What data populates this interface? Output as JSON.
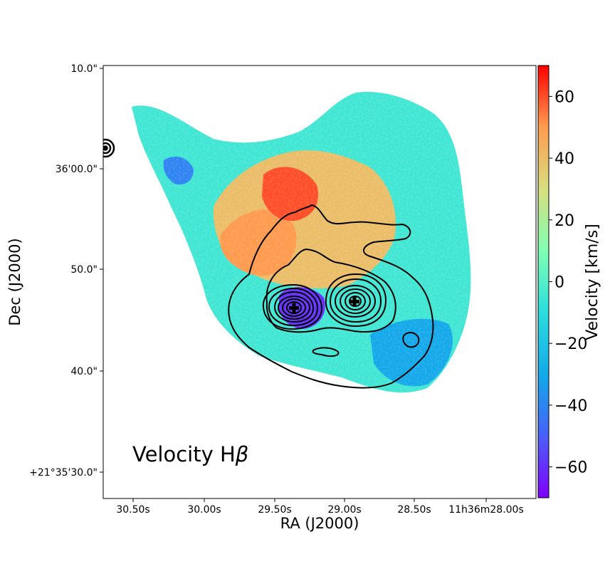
{
  "chart_data": {
    "type": "heatmap",
    "title": "",
    "panel_label": "Velocity Hβ",
    "xlabel": "RA (J2000)",
    "ylabel": "Dec (J2000)",
    "x_ticks": [
      "30.50s",
      "30.00s",
      "29.50s",
      "29.00s",
      "28.50s",
      "11h36m28.00s"
    ],
    "y_ticks": [
      "10.0\"",
      "36'00.0\"",
      "50.0\"",
      "40.0\"",
      "+21°35'30.0\""
    ],
    "colorbar": {
      "label": "Velocity [km/s]",
      "range": [
        -70,
        70
      ],
      "ticks": [
        "60",
        "40",
        "20",
        "0",
        "−20",
        "−40",
        "−60"
      ],
      "colormap": "rainbow"
    },
    "nuclei_markers": 2,
    "contours": "black flux contours around two nuclei",
    "velocity_field": {
      "west_lobe": 50,
      "central_ridge": 40,
      "outer_envelope": -5,
      "east_nucleus": -60,
      "south_east": -30
    }
  },
  "colors": {
    "contour": "#000000",
    "marker": "#000000"
  }
}
